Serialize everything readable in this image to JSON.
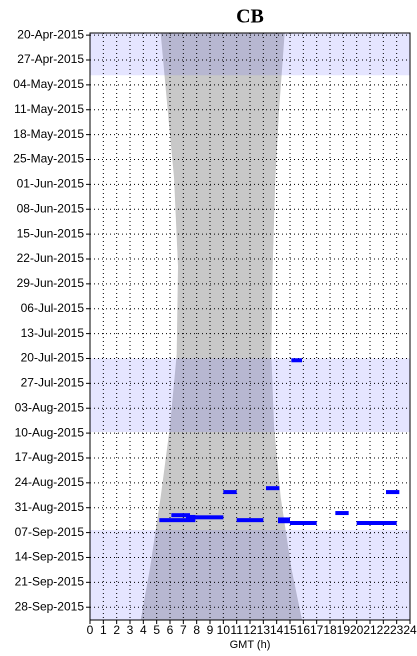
{
  "chart_data": {
    "type": "timeline",
    "title": "CB",
    "x_label": "GMT (h)",
    "xlim": [
      0,
      24
    ],
    "xticks": [
      0,
      1,
      2,
      3,
      4,
      5,
      6,
      7,
      8,
      9,
      10,
      11,
      12,
      13,
      14,
      15,
      16,
      17,
      18,
      19,
      20,
      21,
      22,
      23,
      24
    ],
    "ylim": [
      -0.6,
      164.6
    ],
    "yticks": [
      {
        "value": 0,
        "label": "20-Apr-2015"
      },
      {
        "value": 7,
        "label": "27-Apr-2015"
      },
      {
        "value": 14,
        "label": "04-May-2015"
      },
      {
        "value": 21,
        "label": "11-May-2015"
      },
      {
        "value": 28,
        "label": "18-May-2015"
      },
      {
        "value": 35,
        "label": "25-May-2015"
      },
      {
        "value": 42,
        "label": "01-Jun-2015"
      },
      {
        "value": 49,
        "label": "08-Jun-2015"
      },
      {
        "value": 56,
        "label": "15-Jun-2015"
      },
      {
        "value": 63,
        "label": "22-Jun-2015"
      },
      {
        "value": 70,
        "label": "29-Jun-2015"
      },
      {
        "value": 77,
        "label": "06-Jul-2015"
      },
      {
        "value": 84,
        "label": "13-Jul-2015"
      },
      {
        "value": 91,
        "label": "20-Jul-2015"
      },
      {
        "value": 98,
        "label": "27-Jul-2015"
      },
      {
        "value": 105,
        "label": "03-Aug-2015"
      },
      {
        "value": 112,
        "label": "10-Aug-2015"
      },
      {
        "value": 119,
        "label": "17-Aug-2015"
      },
      {
        "value": 126,
        "label": "24-Aug-2015"
      },
      {
        "value": 133,
        "label": "31-Aug-2015"
      },
      {
        "value": 140,
        "label": "07-Sep-2015"
      },
      {
        "value": 147,
        "label": "14-Sep-2015"
      },
      {
        "value": 154,
        "label": "21-Sep-2015"
      },
      {
        "value": 161,
        "label": "28-Sep-2015"
      }
    ],
    "grid": true,
    "daylight": {
      "color": "#c8c8c8",
      "days": [
        -0.6,
        20,
        40,
        65,
        90,
        110,
        130,
        150,
        164.6
      ],
      "start": [
        5.3,
        5.8,
        6.3,
        6.6,
        6.5,
        6.0,
        5.3,
        4.5,
        3.8
      ],
      "end": [
        14.6,
        14.2,
        13.9,
        13.7,
        13.6,
        13.8,
        14.3,
        15.1,
        15.9
      ]
    },
    "periods": {
      "color": "#6464ff",
      "start": [
        -0.6,
        91,
        139.3
      ],
      "end": [
        11.3,
        111.7,
        164.6
      ]
    },
    "events": {
      "color": "#0000ff",
      "day": [
        91.5,
        128.6,
        127.5,
        128.6,
        134.5,
        135.1,
        135.7,
        136.5,
        135.6,
        136.5,
        136.8,
        136.3,
        137.3,
        137.3
      ],
      "start": [
        15.1,
        10.0,
        13.2,
        22.2,
        18.4,
        6.1,
        7.4,
        5.2,
        7.2,
        11.0,
        14.1,
        14.1,
        15.0,
        20.0
      ],
      "end": [
        15.9,
        11.0,
        14.2,
        23.2,
        19.4,
        7.5,
        10.0,
        7.9,
        7.9,
        13.0,
        15.0,
        15.0,
        17.0,
        23.0
      ]
    }
  }
}
